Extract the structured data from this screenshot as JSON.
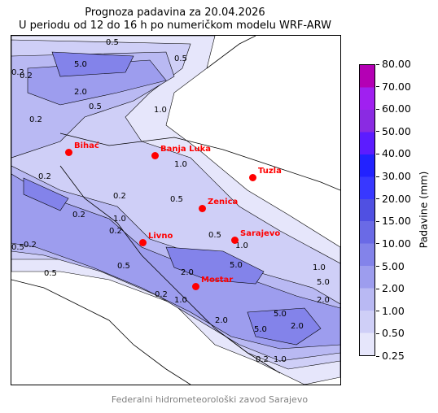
{
  "title_line1": "Prognoza padavina za 20.04.2026",
  "title_line2": "U periodu od 12 do 16 h po numeričkom modelu WRF-ARW",
  "credit": "Federalni hidrometeorološki zavod Sarajevo",
  "colorbar": {
    "title": "Padavine (mm)",
    "levels": [
      "0.25",
      "0.50",
      "1.00",
      "2.00",
      "5.00",
      "10.00",
      "15.00",
      "20.00",
      "30.00",
      "40.00",
      "50.00",
      "60.00",
      "70.00",
      "80.00"
    ],
    "colors": [
      "#e6e6fb",
      "#cfcff7",
      "#b9b9f3",
      "#9d9dee",
      "#8383ea",
      "#6a6ae6",
      "#5050e2",
      "#3838ff",
      "#2222ff",
      "#5c1cff",
      "#8a2be2",
      "#a020f0",
      "#b400b4"
    ]
  },
  "cities": [
    {
      "name": "Bihać"
    },
    {
      "name": "Banja Luka"
    },
    {
      "name": "Tuzla"
    },
    {
      "name": "Zenica"
    },
    {
      "name": "Livno"
    },
    {
      "name": "Sarajevo"
    },
    {
      "name": "Mostar"
    }
  ],
  "contour_labels": [
    "0.5",
    "5.0",
    "0.2",
    "0.5",
    "2.0",
    "0.2",
    "1.0",
    "0.5",
    "1.0",
    "0.2",
    "0.2",
    "1.0",
    "0.2",
    "0.5",
    "1.0",
    "0.2",
    "0.5",
    "5.0",
    "0.2",
    "2.0",
    "5.0",
    "1.0",
    "0.5",
    "2.0",
    "1.0",
    "5.0",
    "0.2",
    "0.5",
    "2.0",
    "5.0",
    "2.0",
    "1.0",
    "0.2",
    "0.2",
    "0.5"
  ],
  "city_color": "#ff0000"
}
